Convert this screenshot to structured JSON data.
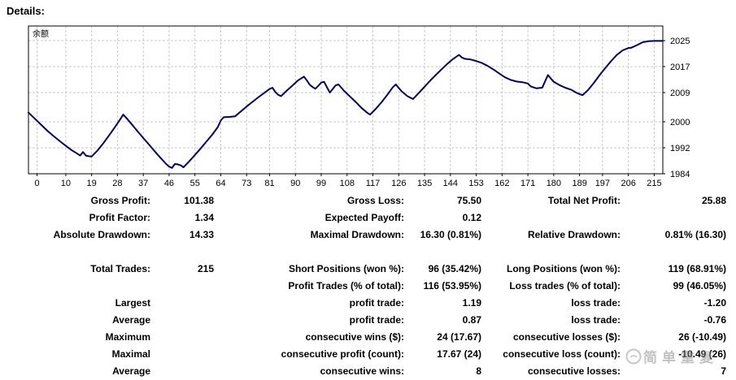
{
  "page": {
    "title": "Details:"
  },
  "chart_data": {
    "type": "line",
    "title": "余额",
    "xlabel": "",
    "ylabel": "",
    "grid": true,
    "legend_position": "none",
    "axis_side": "right",
    "xlim": [
      -3,
      218
    ],
    "ylim": [
      1984,
      2029.5
    ],
    "x_ticks": [
      0,
      10,
      19,
      28,
      37,
      46,
      55,
      64,
      73,
      81,
      90,
      99,
      108,
      117,
      126,
      135,
      144,
      153,
      162,
      171,
      180,
      189,
      197,
      206,
      215
    ],
    "y_ticks": [
      2025,
      2017,
      2009,
      2000,
      1992,
      1984
    ],
    "series": [
      {
        "name": "余额",
        "color": "#000066",
        "points": [
          [
            0,
            2000.3
          ],
          [
            2,
            1998.6
          ],
          [
            4,
            1996.9
          ],
          [
            6,
            1995.4
          ],
          [
            8,
            1994.0
          ],
          [
            10,
            1992.6
          ],
          [
            12,
            1991.3
          ],
          [
            14,
            1990.2
          ],
          [
            15,
            1989.6
          ],
          [
            16,
            1990.7
          ],
          [
            17,
            1989.6
          ],
          [
            18,
            1989.4
          ],
          [
            19,
            1989.3
          ],
          [
            21,
            1991.1
          ],
          [
            23,
            1993.3
          ],
          [
            25,
            1995.7
          ],
          [
            27,
            1998.2
          ],
          [
            29,
            2000.8
          ],
          [
            30,
            2002.2
          ],
          [
            31,
            2001.3
          ],
          [
            33,
            1999.2
          ],
          [
            35,
            1997.1
          ],
          [
            37,
            1995.0
          ],
          [
            39,
            1993.0
          ],
          [
            41,
            1990.9
          ],
          [
            43,
            1988.9
          ],
          [
            45,
            1987.0
          ],
          [
            46,
            1986.2
          ],
          [
            47,
            1985.8
          ],
          [
            48,
            1987.0
          ],
          [
            49,
            1986.9
          ],
          [
            50,
            1986.6
          ],
          [
            51,
            1986.0
          ],
          [
            53,
            1987.8
          ],
          [
            55,
            1989.8
          ],
          [
            57,
            1991.8
          ],
          [
            59,
            1993.9
          ],
          [
            61,
            1996.0
          ],
          [
            63,
            1998.4
          ],
          [
            64,
            2000.4
          ],
          [
            65,
            2001.4
          ],
          [
            67,
            2001.5
          ],
          [
            69,
            2001.7
          ],
          [
            71,
            2003.2
          ],
          [
            73,
            2004.7
          ],
          [
            75,
            2006.1
          ],
          [
            77,
            2007.5
          ],
          [
            79,
            2008.8
          ],
          [
            81,
            2010.1
          ],
          [
            82,
            2010.5
          ],
          [
            83,
            2009.2
          ],
          [
            84,
            2008.3
          ],
          [
            85,
            2007.9
          ],
          [
            87,
            2009.6
          ],
          [
            89,
            2011.2
          ],
          [
            91,
            2012.8
          ],
          [
            93,
            2013.9
          ],
          [
            94,
            2012.7
          ],
          [
            95,
            2011.4
          ],
          [
            96,
            2010.7
          ],
          [
            97,
            2010.2
          ],
          [
            98,
            2011.1
          ],
          [
            99,
            2012.1
          ],
          [
            100,
            2012.3
          ],
          [
            101,
            2010.6
          ],
          [
            102,
            2009.0
          ],
          [
            103,
            2010.1
          ],
          [
            104,
            2011.2
          ],
          [
            105,
            2011.5
          ],
          [
            107,
            2009.5
          ],
          [
            109,
            2007.8
          ],
          [
            111,
            2006.1
          ],
          [
            113,
            2004.3
          ],
          [
            115,
            2002.8
          ],
          [
            116,
            2002.2
          ],
          [
            118,
            2004.0
          ],
          [
            120,
            2006.0
          ],
          [
            122,
            2008.3
          ],
          [
            124,
            2010.7
          ],
          [
            125,
            2011.5
          ],
          [
            126,
            2010.4
          ],
          [
            127,
            2009.4
          ],
          [
            129,
            2007.9
          ],
          [
            131,
            2007.0
          ],
          [
            133,
            2008.9
          ],
          [
            135,
            2010.8
          ],
          [
            137,
            2012.7
          ],
          [
            139,
            2014.5
          ],
          [
            141,
            2016.2
          ],
          [
            143,
            2017.9
          ],
          [
            145,
            2019.4
          ],
          [
            147,
            2020.6
          ],
          [
            148,
            2019.8
          ],
          [
            149,
            2019.4
          ],
          [
            151,
            2019.2
          ],
          [
            153,
            2018.7
          ],
          [
            155,
            2018.1
          ],
          [
            157,
            2017.2
          ],
          [
            159,
            2016.1
          ],
          [
            161,
            2014.9
          ],
          [
            163,
            2013.7
          ],
          [
            165,
            2012.9
          ],
          [
            167,
            2012.4
          ],
          [
            169,
            2012.2
          ],
          [
            171,
            2011.8
          ],
          [
            172,
            2010.9
          ],
          [
            174,
            2010.3
          ],
          [
            176,
            2010.5
          ],
          [
            177,
            2012.5
          ],
          [
            178,
            2014.4
          ],
          [
            179,
            2013.3
          ],
          [
            180,
            2012.3
          ],
          [
            182,
            2011.3
          ],
          [
            184,
            2010.5
          ],
          [
            186,
            2009.9
          ],
          [
            188,
            2008.9
          ],
          [
            190,
            2008.2
          ],
          [
            192,
            2009.8
          ],
          [
            194,
            2012.0
          ],
          [
            196,
            2014.4
          ],
          [
            198,
            2016.6
          ],
          [
            200,
            2018.7
          ],
          [
            202,
            2020.6
          ],
          [
            204,
            2022.0
          ],
          [
            206,
            2022.7
          ],
          [
            207,
            2022.8
          ],
          [
            209,
            2023.6
          ],
          [
            211,
            2024.5
          ],
          [
            213,
            2024.8
          ],
          [
            215,
            2024.9
          ]
        ]
      }
    ]
  },
  "report": {
    "rows": [
      {
        "l1": "Gross Profit:",
        "v1": "101.38",
        "l2": "Gross Loss:",
        "v2": "75.50",
        "l3": "Total Net Profit:",
        "v3": "25.88"
      },
      {
        "l1": "Profit Factor:",
        "v1": "1.34",
        "l2": "Expected Payoff:",
        "v2": "0.12",
        "l3": "",
        "v3": ""
      },
      {
        "l1": "Absolute Drawdown:",
        "v1": "14.33",
        "l2": "Maximal Drawdown:",
        "v2": "16.30 (0.81%)",
        "l3": "Relative Drawdown:",
        "v3": "0.81% (16.30)"
      },
      {
        "l1": "Total Trades:",
        "v1": "215",
        "l2": "Short Positions (won %):",
        "v2": "96 (35.42%)",
        "l3": "Long Positions (won %):",
        "v3": "119 (68.91%)"
      },
      {
        "l1": "",
        "v1": "",
        "l2": "Profit Trades (% of total):",
        "v2": "116 (53.95%)",
        "l3": "Loss trades (% of total):",
        "v3": "99 (46.05%)"
      },
      {
        "l1": "Largest",
        "v1": "",
        "l2": "profit trade:",
        "v2": "1.19",
        "l3": "loss trade:",
        "v3": "-1.20"
      },
      {
        "l1": "Average",
        "v1": "",
        "l2": "profit trade:",
        "v2": "0.87",
        "l3": "loss trade:",
        "v3": "-0.76"
      },
      {
        "l1": "Maximum",
        "v1": "",
        "l2": "consecutive wins ($):",
        "v2": "24 (17.67)",
        "l3": "consecutive losses ($):",
        "v3": "26 (-10.49)"
      },
      {
        "l1": "Maximal",
        "v1": "",
        "l2": "consecutive profit (count):",
        "v2": "17.67 (24)",
        "l3": "consecutive loss (count):",
        "v3": "-10.49 (26)"
      },
      {
        "l1": "Average",
        "v1": "",
        "l2": "consecutive wins:",
        "v2": "8",
        "l3": "consecutive losses:",
        "v3": "7"
      }
    ]
  },
  "watermark": {
    "text": "简单重复"
  },
  "colors": {
    "line": "#000066",
    "grid": "#c8c8c8",
    "axis": "#000000",
    "watermark": "#8f8f8f"
  }
}
